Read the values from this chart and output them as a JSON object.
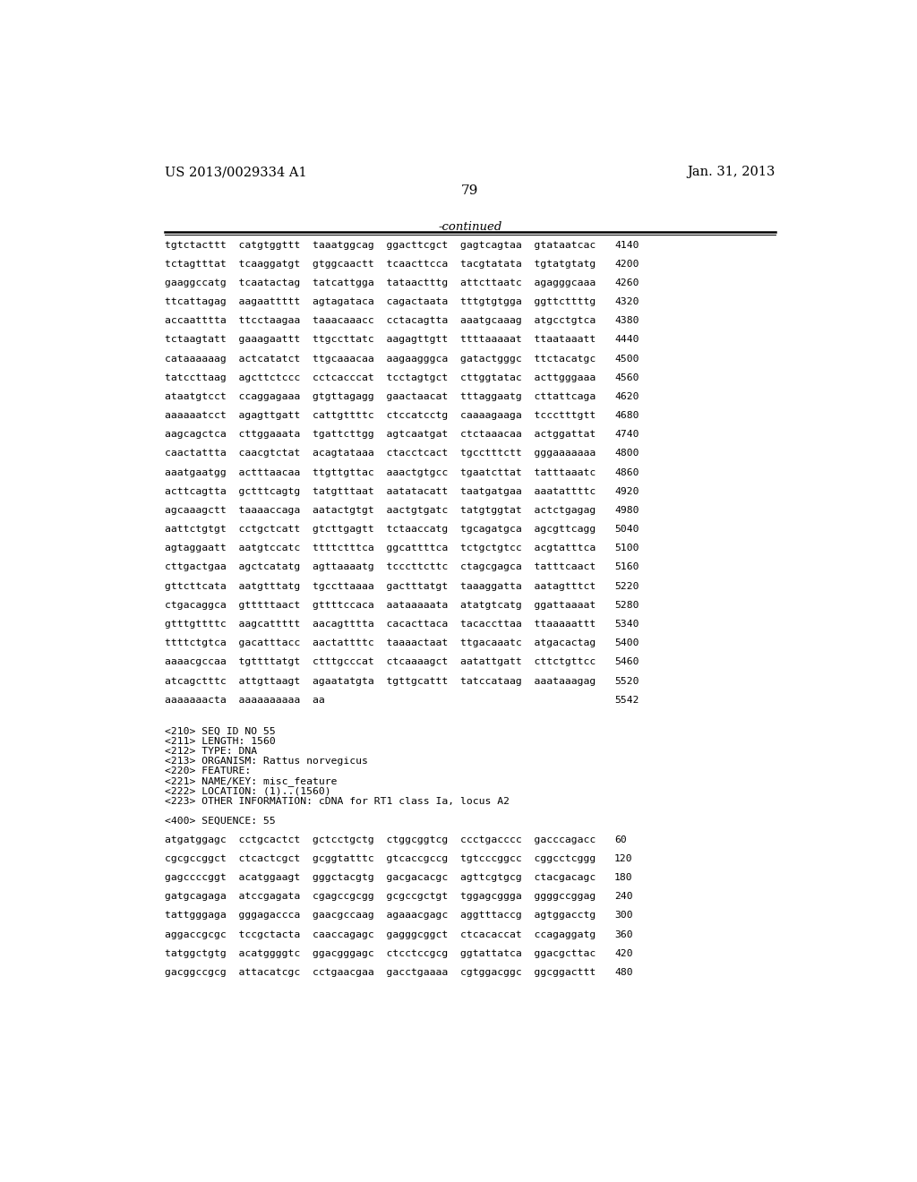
{
  "header_left": "US 2013/0029334 A1",
  "header_right": "Jan. 31, 2013",
  "page_number": "79",
  "continued_label": "-continued",
  "background_color": "#ffffff",
  "text_color": "#000000",
  "sequence_lines": [
    [
      "tgtctacttt  catgtggttt  taaatggcag  ggacttcgct  gagtcagtaa  gtataatcac",
      "4140"
    ],
    [
      "tctagtttat  tcaaggatgt  gtggcaactt  tcaacttcca  tacgtatata  tgtatgtatg",
      "4200"
    ],
    [
      "gaaggccatg  tcaatactag  tatcattgga  tataactttg  attcttaatc  agagggcaaa",
      "4260"
    ],
    [
      "ttcattagag  aagaattttt  agtagataca  cagactaata  tttgtgtgga  ggttcttttg",
      "4320"
    ],
    [
      "accaatttta  ttcctaagaa  taaacaaacc  cctacagtta  aaatgcaaag  atgcctgtca",
      "4380"
    ],
    [
      "tctaagtatt  gaaagaattt  ttgccttatc  aagagttgtt  ttttaaaaat  ttaataaatt",
      "4440"
    ],
    [
      "cataaaaaag  actcatatct  ttgcaaacaa  aagaagggca  gatactgggc  ttctacatgc",
      "4500"
    ],
    [
      "tatccttaag  agcttctccc  cctcacccat  tcctagtgct  cttggtatac  acttgggaaa",
      "4560"
    ],
    [
      "ataatgtcct  ccaggagaaa  gtgttagagg  gaactaacat  tttaggaatg  cttattcaga",
      "4620"
    ],
    [
      "aaaaaatcct  agagttgatt  cattgttttc  ctccatcctg  caaaagaaga  tccctttgtt",
      "4680"
    ],
    [
      "aagcagctca  cttggaaata  tgattcttgg  agtcaatgat  ctctaaacaa  actggattat",
      "4740"
    ],
    [
      "caactattta  caacgtctat  acagtataaa  ctacctcact  tgcctttctt  gggaaaaaaa",
      "4800"
    ],
    [
      "aaatgaatgg  actttaacaa  ttgttgttac  aaactgtgcc  tgaatcttat  tatttaaatc",
      "4860"
    ],
    [
      "acttcagtta  gctttcagtg  tatgtttaat  aatatacatt  taatgatgaa  aaatattttc",
      "4920"
    ],
    [
      "agcaaagctt  taaaaccaga  aatactgtgt  aactgtgatc  tatgtggtat  actctgagag",
      "4980"
    ],
    [
      "aattctgtgt  cctgctcatt  gtcttgagtt  tctaaccatg  tgcagatgca  agcgttcagg",
      "5040"
    ],
    [
      "agtaggaatt  aatgtccatc  ttttctttca  ggcattttca  tctgctgtcc  acgtatttca",
      "5100"
    ],
    [
      "cttgactgaa  agctcatatg  agttaaaatg  tcccttcttc  ctagcgagca  tatttcaact",
      "5160"
    ],
    [
      "gttcttcata  aatgtttatg  tgccttaaaa  gactttatgt  taaaggatta  aatagtttct",
      "5220"
    ],
    [
      "ctgacaggca  gtttttaact  gttttccaca  aataaaaata  atatgtcatg  ggattaaaat",
      "5280"
    ],
    [
      "gtttgttttc  aagcattttt  aacagtttta  cacacttaca  tacaccttaa  ttaaaaattt",
      "5340"
    ],
    [
      "ttttctgtca  gacatttacc  aactattttc  taaaactaat  ttgacaaatc  atgacactag",
      "5400"
    ],
    [
      "aaaacgccaa  tgttttatgt  ctttgcccat  ctcaaaagct  aatattgatt  cttctgttcc",
      "5460"
    ],
    [
      "atcagctttc  attgttaagt  agaatatgta  tgttgcattt  tatccataag  aaataaagag",
      "5520"
    ],
    [
      "aaaaaaacta  aaaaaaaaaa  aa",
      "5542"
    ]
  ],
  "meta_lines": [
    "<210> SEQ ID NO 55",
    "<211> LENGTH: 1560",
    "<212> TYPE: DNA",
    "<213> ORGANISM: Rattus norvegicus",
    "<220> FEATURE:",
    "<221> NAME/KEY: misc_feature",
    "<222> LOCATION: (1)..(1560)",
    "<223> OTHER INFORMATION: cDNA for RT1 class Ia, locus A2"
  ],
  "seq400_header": "<400> SEQUENCE: 55",
  "seq400_lines": [
    [
      "atgatggagc  cctgcactct  gctcctgctg  ctggcggtcg  ccctgacccc  gacccagacc",
      "60"
    ],
    [
      "cgcgccggct  ctcactcgct  gcggtatttc  gtcaccgccg  tgtcccggcc  cggcctcggg",
      "120"
    ],
    [
      "gagccccggt  acatggaagt  gggctacgtg  gacgacacgc  agttcgtgcg  ctacgacagc",
      "180"
    ],
    [
      "gatgcagaga  atccgagata  cgagccgcgg  gcgccgctgt  tggagcggga  ggggccggag",
      "240"
    ],
    [
      "tattgggaga  gggagaccca  gaacgccaag  agaaacgagc  aggtttaccg  agtggacctg",
      "300"
    ],
    [
      "aggaccgcgc  tccgctacta  caaccagagc  gagggcggct  ctcacaccat  ccagaggatg",
      "360"
    ],
    [
      "tatggctgtg  acatggggtc  ggacgggagc  ctcctccgcg  ggtattatca  ggacgcttac",
      "420"
    ],
    [
      "gacggccgcg  attacatcgc  cctgaacgaa  gacctgaaaa  cgtggacggc  ggcggacttt",
      "480"
    ]
  ]
}
